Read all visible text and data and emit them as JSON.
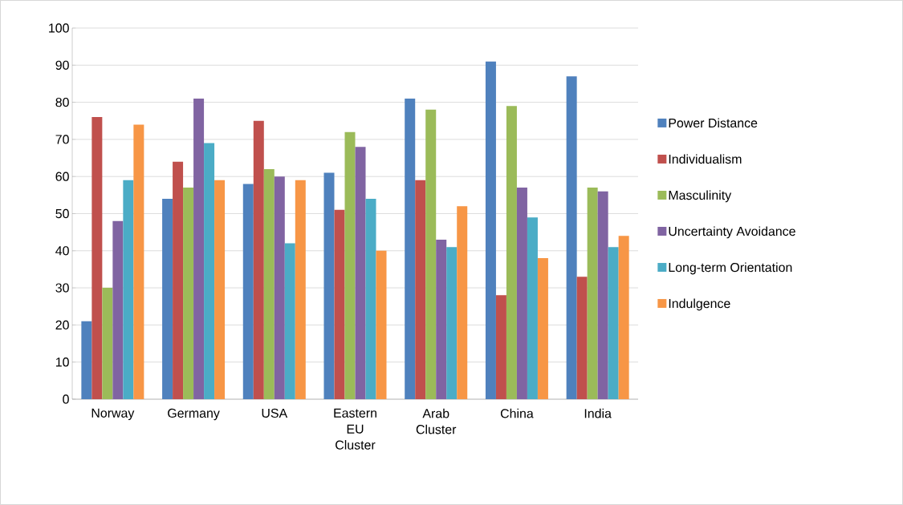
{
  "chart_data": {
    "type": "bar",
    "categories": [
      "Norway",
      "Germany",
      "USA",
      "Eastern EU Cluster",
      "Arab Cluster",
      "China",
      "India"
    ],
    "series": [
      {
        "name": "Power Distance",
        "color": "#4f81bd",
        "values": [
          21,
          54,
          58,
          61,
          81,
          91,
          87
        ]
      },
      {
        "name": "Individualism",
        "color": "#c0504d",
        "values": [
          76,
          64,
          75,
          51,
          59,
          28,
          33
        ]
      },
      {
        "name": "Masculinity",
        "color": "#9bbb59",
        "values": [
          30,
          57,
          62,
          72,
          78,
          79,
          57
        ]
      },
      {
        "name": "Uncertainty Avoidance",
        "color": "#8064a2",
        "values": [
          48,
          81,
          60,
          68,
          43,
          57,
          56
        ]
      },
      {
        "name": "Long-term Orientation",
        "color": "#4bacc6",
        "values": [
          59,
          69,
          42,
          54,
          41,
          49,
          41
        ]
      },
      {
        "name": "Indulgence",
        "color": "#f79646",
        "values": [
          74,
          59,
          59,
          40,
          52,
          38,
          44
        ]
      }
    ],
    "ylim": [
      0,
      100
    ],
    "yticks": [
      0,
      10,
      20,
      30,
      40,
      50,
      60,
      70,
      80,
      90,
      100
    ],
    "grid": "y",
    "legend": "right"
  }
}
